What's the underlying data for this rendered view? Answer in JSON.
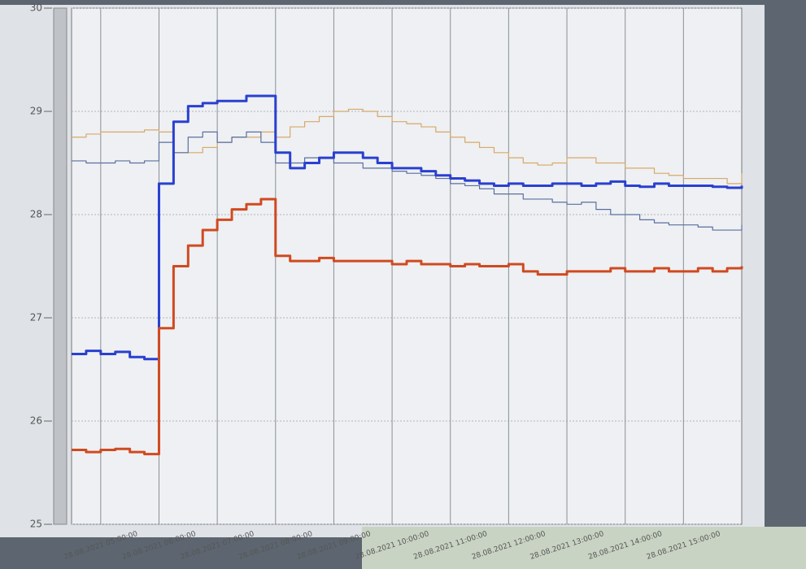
{
  "chart_data": {
    "type": "line",
    "categories": [
      null,
      null,
      "28.08.2021 05:00:00",
      null,
      null,
      null,
      "28.08.2021 06:00:00",
      null,
      null,
      null,
      "28.08.2021 07:00:00",
      null,
      null,
      null,
      "28.08.2021 08:00:00",
      null,
      null,
      null,
      "28.08.2021 09:00:00",
      null,
      null,
      null,
      "28.08.2021 10:00:00",
      null,
      null,
      null,
      "28.08.2021 11:00:00",
      null,
      null,
      null,
      "28.08.2021 12:00:00",
      null,
      null,
      null,
      "28.08.2021 13:00:00",
      null,
      null,
      null,
      "28.08.2021 14:00:00",
      null,
      null,
      null,
      "28.08.2021 15:00:00",
      null,
      null,
      null,
      null
    ],
    "series": [
      {
        "color": "#d8a868",
        "width": 1.2,
        "values": [
          28.75,
          28.78,
          28.8,
          28.8,
          28.8,
          28.82,
          28.8,
          28.6,
          28.6,
          28.65,
          28.7,
          28.75,
          28.75,
          28.8,
          28.75,
          28.85,
          28.9,
          28.95,
          29.0,
          29.02,
          29.0,
          28.95,
          28.9,
          28.88,
          28.85,
          28.8,
          28.75,
          28.7,
          28.65,
          28.6,
          28.55,
          28.5,
          28.48,
          28.5,
          28.55,
          28.55,
          28.5,
          28.5,
          28.45,
          28.45,
          28.4,
          28.38,
          28.35,
          28.35,
          28.35,
          28.3,
          28.4
        ]
      },
      {
        "color": "#5a6fa0",
        "width": 1.2,
        "values": [
          28.52,
          28.5,
          28.5,
          28.52,
          28.5,
          28.52,
          28.7,
          28.6,
          28.75,
          28.8,
          28.7,
          28.75,
          28.8,
          28.7,
          28.5,
          28.5,
          28.55,
          28.55,
          28.5,
          28.5,
          28.45,
          28.45,
          28.42,
          28.4,
          28.38,
          28.35,
          28.3,
          28.28,
          28.25,
          28.2,
          28.2,
          28.15,
          28.15,
          28.12,
          28.1,
          28.12,
          28.05,
          28.0,
          28.0,
          27.95,
          27.92,
          27.9,
          27.9,
          27.88,
          27.85,
          27.85,
          27.9
        ]
      },
      {
        "color": "#2a40d0",
        "width": 3,
        "values": [
          26.65,
          26.68,
          26.65,
          26.67,
          26.62,
          26.6,
          28.3,
          28.9,
          29.05,
          29.08,
          29.1,
          29.1,
          29.15,
          29.15,
          28.6,
          28.45,
          28.5,
          28.55,
          28.6,
          28.6,
          28.55,
          28.5,
          28.45,
          28.45,
          28.42,
          28.38,
          28.35,
          28.33,
          28.3,
          28.28,
          28.3,
          28.28,
          28.28,
          28.3,
          28.3,
          28.28,
          28.3,
          28.32,
          28.28,
          28.27,
          28.3,
          28.28,
          28.28,
          28.28,
          28.27,
          28.26,
          28.28
        ]
      },
      {
        "color": "#d04a20",
        "width": 3,
        "values": [
          25.72,
          25.7,
          25.72,
          25.73,
          25.7,
          25.68,
          26.9,
          27.5,
          27.7,
          27.85,
          27.95,
          28.05,
          28.1,
          28.15,
          27.6,
          27.55,
          27.55,
          27.58,
          27.55,
          27.55,
          27.55,
          27.55,
          27.52,
          27.55,
          27.52,
          27.52,
          27.5,
          27.52,
          27.5,
          27.5,
          27.52,
          27.45,
          27.42,
          27.42,
          27.45,
          27.45,
          27.45,
          27.48,
          27.45,
          27.45,
          27.48,
          27.45,
          27.45,
          27.48,
          27.45,
          27.48,
          27.5
        ]
      }
    ],
    "ylim": [
      25,
      30
    ],
    "yticks": [
      25,
      26,
      27,
      28,
      29,
      30
    ],
    "grid": true
  }
}
